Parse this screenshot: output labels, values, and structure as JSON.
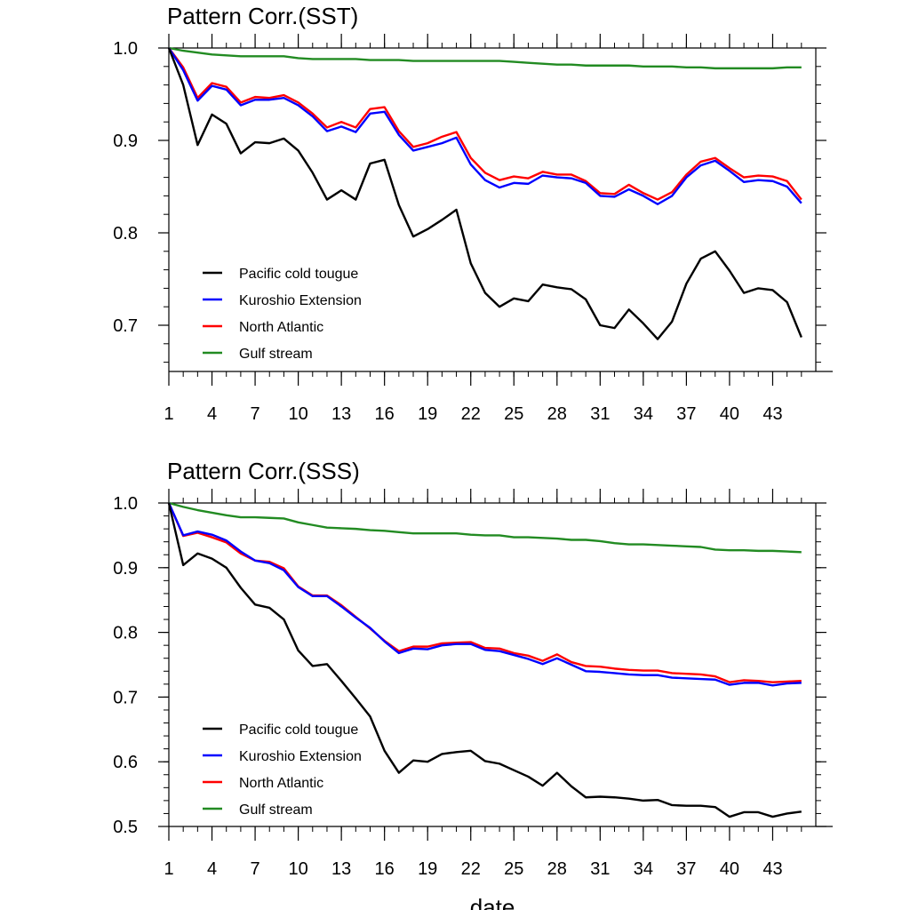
{
  "chart_data": [
    {
      "type": "line",
      "title": "Pattern Corr.(SST)",
      "xlabel": "",
      "ylabel": "",
      "xlim": [
        1,
        46
      ],
      "ylim": [
        0.65,
        1.0
      ],
      "yticks": [
        0.7,
        0.8,
        0.9,
        1.0
      ],
      "ytick_labels": [
        "0.7",
        "0.8",
        "0.9",
        "1.0"
      ],
      "xticks": [
        1,
        4,
        7,
        10,
        13,
        16,
        19,
        22,
        25,
        28,
        31,
        34,
        37,
        40,
        43
      ],
      "xtick_labels": [
        "1",
        "4",
        "7",
        "10",
        "13",
        "16",
        "19",
        "22",
        "25",
        "28",
        "31",
        "34",
        "37",
        "40",
        "43"
      ],
      "grid": false,
      "legend_position": "bottom-left",
      "series": [
        {
          "name": "Pacific cold tougue",
          "color": "#000000",
          "values": [
            1.0,
            0.96,
            0.895,
            0.928,
            0.918,
            0.886,
            0.898,
            0.897,
            0.902,
            0.889,
            0.865,
            0.836,
            0.846,
            0.836,
            0.875,
            0.879,
            0.83,
            0.796,
            0.804,
            0.814,
            0.825,
            0.767,
            0.735,
            0.72,
            0.729,
            0.726,
            0.744,
            0.741,
            0.739,
            0.728,
            0.7,
            0.697,
            0.717,
            0.702,
            0.685,
            0.704,
            0.745,
            0.772,
            0.78,
            0.759,
            0.735,
            0.74,
            0.738,
            0.725,
            0.687
          ]
        },
        {
          "name": "Kuroshio Extension",
          "color": "#0000ff",
          "values": [
            1.0,
            0.976,
            0.943,
            0.959,
            0.955,
            0.938,
            0.944,
            0.944,
            0.946,
            0.938,
            0.926,
            0.91,
            0.915,
            0.909,
            0.929,
            0.931,
            0.906,
            0.889,
            0.893,
            0.897,
            0.903,
            0.874,
            0.857,
            0.849,
            0.854,
            0.853,
            0.862,
            0.86,
            0.859,
            0.854,
            0.84,
            0.839,
            0.847,
            0.84,
            0.831,
            0.84,
            0.86,
            0.873,
            0.878,
            0.867,
            0.855,
            0.857,
            0.856,
            0.85,
            0.832
          ]
        },
        {
          "name": "North Atlantic",
          "color": "#ff0000",
          "values": [
            1.0,
            0.979,
            0.946,
            0.962,
            0.958,
            0.941,
            0.947,
            0.946,
            0.949,
            0.941,
            0.929,
            0.914,
            0.92,
            0.914,
            0.934,
            0.936,
            0.91,
            0.893,
            0.897,
            0.904,
            0.909,
            0.881,
            0.865,
            0.857,
            0.861,
            0.859,
            0.866,
            0.863,
            0.863,
            0.856,
            0.843,
            0.842,
            0.852,
            0.843,
            0.836,
            0.844,
            0.863,
            0.877,
            0.881,
            0.87,
            0.86,
            0.862,
            0.861,
            0.856,
            0.836
          ]
        },
        {
          "name": "Gulf stream",
          "color": "#228b22",
          "values": [
            1.0,
            0.997,
            0.995,
            0.993,
            0.992,
            0.991,
            0.991,
            0.991,
            0.991,
            0.989,
            0.988,
            0.988,
            0.988,
            0.988,
            0.987,
            0.987,
            0.987,
            0.986,
            0.986,
            0.986,
            0.986,
            0.986,
            0.986,
            0.986,
            0.985,
            0.984,
            0.983,
            0.982,
            0.982,
            0.981,
            0.981,
            0.981,
            0.981,
            0.98,
            0.98,
            0.98,
            0.979,
            0.979,
            0.978,
            0.978,
            0.978,
            0.978,
            0.978,
            0.979,
            0.979
          ]
        }
      ]
    },
    {
      "type": "line",
      "title": "Pattern Corr.(SSS)",
      "xlabel": "date",
      "ylabel": "",
      "xlim": [
        1,
        46
      ],
      "ylim": [
        0.5,
        1.0
      ],
      "yticks": [
        0.5,
        0.6,
        0.7,
        0.8,
        0.9,
        1.0
      ],
      "ytick_labels": [
        "0.5",
        "0.6",
        "0.7",
        "0.8",
        "0.9",
        "1.0"
      ],
      "xticks": [
        1,
        4,
        7,
        10,
        13,
        16,
        19,
        22,
        25,
        28,
        31,
        34,
        37,
        40,
        43
      ],
      "xtick_labels": [
        "1",
        "4",
        "7",
        "10",
        "13",
        "16",
        "19",
        "22",
        "25",
        "28",
        "31",
        "34",
        "37",
        "40",
        "43"
      ],
      "grid": false,
      "legend_position": "bottom-left",
      "series": [
        {
          "name": "Pacific cold tougue",
          "color": "#000000",
          "values": [
            1.0,
            0.904,
            0.922,
            0.914,
            0.9,
            0.869,
            0.843,
            0.838,
            0.82,
            0.772,
            0.748,
            0.751,
            0.725,
            0.698,
            0.67,
            0.617,
            0.583,
            0.602,
            0.6,
            0.612,
            0.615,
            0.617,
            0.601,
            0.597,
            0.587,
            0.577,
            0.563,
            0.583,
            0.562,
            0.545,
            0.546,
            0.545,
            0.543,
            0.54,
            0.541,
            0.533,
            0.532,
            0.532,
            0.53,
            0.515,
            0.522,
            0.522,
            0.515,
            0.52,
            0.523
          ]
        },
        {
          "name": "Kuroshio Extension",
          "color": "#0000ff",
          "values": [
            1.0,
            0.95,
            0.956,
            0.951,
            0.942,
            0.925,
            0.911,
            0.907,
            0.896,
            0.87,
            0.856,
            0.856,
            0.84,
            0.823,
            0.807,
            0.786,
            0.768,
            0.775,
            0.774,
            0.78,
            0.782,
            0.782,
            0.773,
            0.771,
            0.765,
            0.759,
            0.751,
            0.76,
            0.75,
            0.74,
            0.739,
            0.737,
            0.735,
            0.734,
            0.734,
            0.73,
            0.729,
            0.728,
            0.727,
            0.719,
            0.722,
            0.722,
            0.718,
            0.721,
            0.722
          ]
        },
        {
          "name": "North Atlantic",
          "color": "#ff0000",
          "values": [
            1.0,
            0.949,
            0.954,
            0.947,
            0.939,
            0.922,
            0.911,
            0.909,
            0.899,
            0.871,
            0.857,
            0.857,
            0.842,
            0.824,
            0.806,
            0.787,
            0.771,
            0.778,
            0.778,
            0.783,
            0.784,
            0.785,
            0.776,
            0.775,
            0.768,
            0.764,
            0.756,
            0.766,
            0.754,
            0.748,
            0.747,
            0.744,
            0.742,
            0.741,
            0.741,
            0.737,
            0.736,
            0.735,
            0.732,
            0.723,
            0.726,
            0.725,
            0.723,
            0.724,
            0.725
          ]
        },
        {
          "name": "Gulf stream",
          "color": "#228b22",
          "values": [
            1.0,
            0.994,
            0.989,
            0.985,
            0.981,
            0.978,
            0.978,
            0.977,
            0.976,
            0.97,
            0.966,
            0.962,
            0.961,
            0.96,
            0.958,
            0.957,
            0.955,
            0.953,
            0.953,
            0.953,
            0.953,
            0.951,
            0.95,
            0.95,
            0.947,
            0.947,
            0.946,
            0.945,
            0.943,
            0.943,
            0.941,
            0.938,
            0.936,
            0.936,
            0.935,
            0.934,
            0.933,
            0.932,
            0.928,
            0.927,
            0.927,
            0.926,
            0.926,
            0.925,
            0.924
          ]
        }
      ]
    }
  ]
}
